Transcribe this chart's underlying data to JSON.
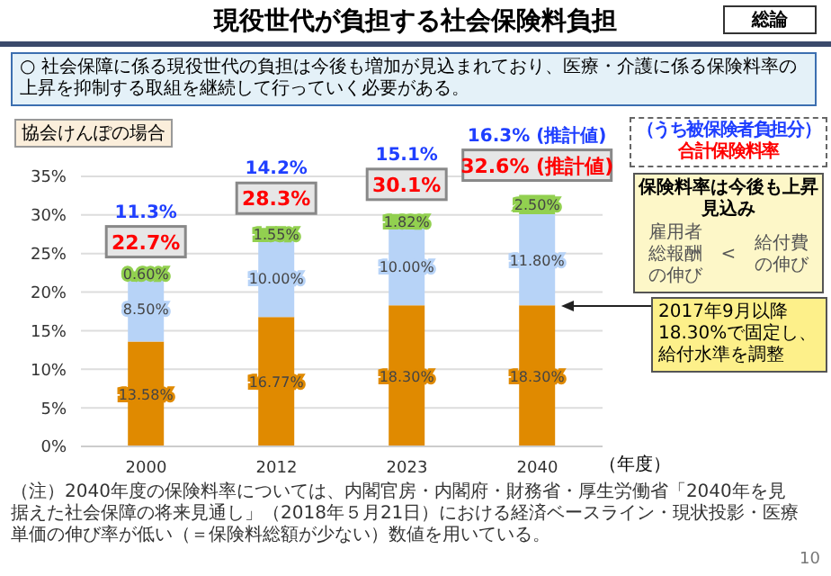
{
  "chart_data": {
    "type": "bar",
    "title": "現役世代が負担する社会保険料負担",
    "subtitle": "○ 社会保障に係る現役世代の負担は今後も増加が見込まれており、医療・介護に係る保険料率の上昇を抑制する取組を継続して行っていく必要がある。",
    "categories": [
      "2000",
      "2012",
      "2023",
      "2040"
    ],
    "xlabel": "（年度）",
    "stacked": true,
    "series": [
      {
        "color": "#e08a00",
        "values": [
          13.58,
          16.77,
          18.3,
          18.3
        ],
        "value_labels": [
          "13.58%",
          "16.77%",
          "18.30%",
          "18.30%"
        ]
      },
      {
        "color": "#b7d3f7",
        "values": [
          8.5,
          10,
          10,
          11.8
        ],
        "value_labels": [
          "8.50%",
          "10.00%",
          "10.00%",
          "11.80%"
        ]
      },
      {
        "color": "#92d050",
        "values": [
          0.6,
          1.55,
          1.82,
          2.5
        ],
        "value_labels": [
          "0.60%",
          "1.55%",
          "1.82%",
          "2.50%"
        ]
      }
    ],
    "totals": [
      "22.7%",
      "28.3%",
      "30.1%",
      "32.6% (推計値)"
    ],
    "ylim": [
      0,
      35
    ],
    "yticks": [
      {
        "value": 0,
        "label": "0%"
      },
      {
        "value": 5,
        "label": "5%"
      },
      {
        "value": 10,
        "label": "10%"
      },
      {
        "value": 15,
        "label": "15%"
      },
      {
        "value": 20,
        "label": "20%"
      },
      {
        "value": 25,
        "label": "25%"
      },
      {
        "value": 30,
        "label": "30%"
      },
      {
        "value": 35,
        "label": "35%"
      }
    ],
    "grid": "y",
    "legend": false,
    "annotations": [
      "総論",
      "協会けんぽの場合",
      "（うち被保険者負担分）",
      "合計保険料率",
      "保険料率は今後も上昇見込み",
      "雇用者総報酬の伸び",
      "<",
      "給付費の伸び",
      "2017年9月以降 18.30%で固定し、給付水準を調整",
      "（注）2040年度の保険料率については、内閣官房・内閣府・財務省・厚生労働省「2040年を見据えた社会保障の将来見通し」（2018年５月21日）における経済ベースライン・現状投影・医療単価の伸び率が低い（＝保険料総額が少ない）数値を用いている。",
      "10",
      "11.3%",
      "14.2%",
      "15.1%",
      "16.3% (推計値)"
    ]
  }
}
